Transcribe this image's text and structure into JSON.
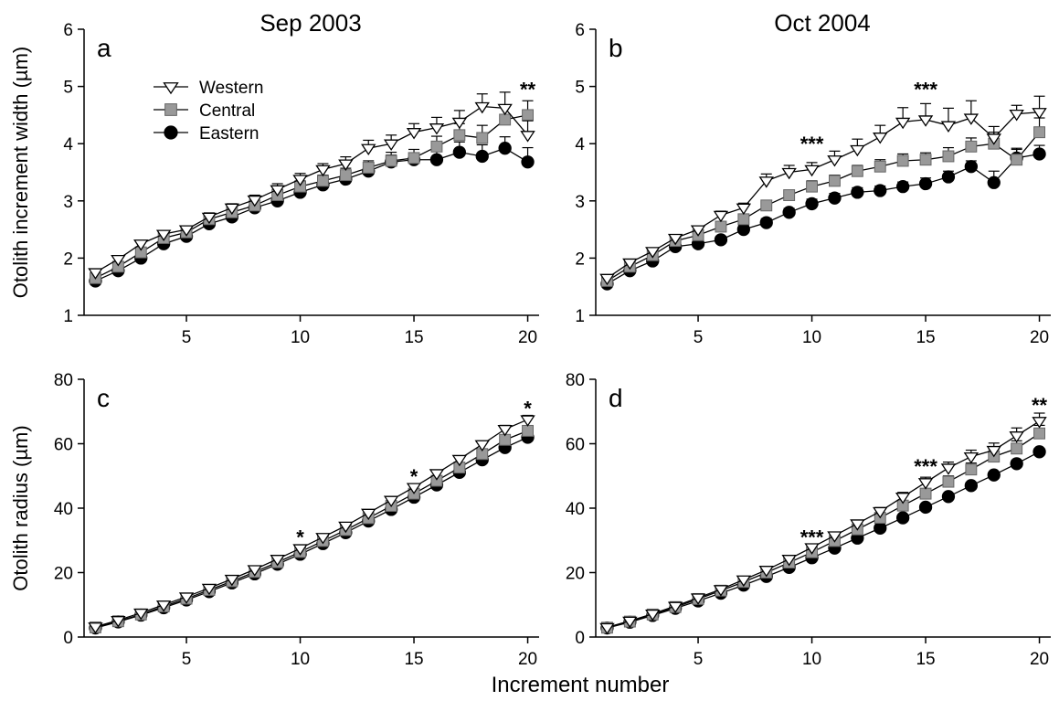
{
  "figure": {
    "column_titles": [
      "Sep 2003",
      "Oct 2004"
    ],
    "xlabel": "Increment number"
  },
  "legend": {
    "entries": [
      {
        "name": "Western",
        "marker": "triangle-down-open"
      },
      {
        "name": "Central",
        "marker": "square-gray"
      },
      {
        "name": "Eastern",
        "marker": "circle-black"
      }
    ],
    "placement": "top-left of panel a"
  },
  "colors": {
    "western_fill": "#ffffff",
    "central_fill": "#999999",
    "eastern_fill": "#000000",
    "line": "#000000"
  },
  "chart_data": [
    {
      "panel": "a",
      "type": "line",
      "ylabel": "Otolith increment width (µm)",
      "xlim": [
        0.5,
        20.5
      ],
      "ylim": [
        1,
        6
      ],
      "xticks": [
        5,
        10,
        15,
        20
      ],
      "yticks": [
        1,
        2,
        3,
        4,
        5,
        6
      ],
      "x": [
        1,
        2,
        3,
        4,
        5,
        6,
        7,
        8,
        9,
        10,
        11,
        12,
        13,
        14,
        15,
        16,
        17,
        18,
        19,
        20
      ],
      "series": [
        {
          "name": "Western",
          "values": [
            1.75,
            1.98,
            2.25,
            2.42,
            2.5,
            2.72,
            2.88,
            3.02,
            3.2,
            3.38,
            3.55,
            3.65,
            3.92,
            4.0,
            4.2,
            4.28,
            4.38,
            4.65,
            4.62,
            4.15
          ],
          "error": [
            0.05,
            0.05,
            0.06,
            0.06,
            0.06,
            0.07,
            0.07,
            0.08,
            0.1,
            0.1,
            0.1,
            0.12,
            0.14,
            0.15,
            0.15,
            0.18,
            0.2,
            0.22,
            0.28,
            0.25
          ]
        },
        {
          "name": "Central",
          "values": [
            1.65,
            1.85,
            2.1,
            2.35,
            2.45,
            2.68,
            2.8,
            2.92,
            3.1,
            3.25,
            3.35,
            3.45,
            3.58,
            3.7,
            3.75,
            3.95,
            4.15,
            4.1,
            4.42,
            4.5
          ],
          "error": [
            0.05,
            0.05,
            0.06,
            0.06,
            0.06,
            0.07,
            0.07,
            0.08,
            0.1,
            0.1,
            0.1,
            0.12,
            0.12,
            0.15,
            0.15,
            0.18,
            0.2,
            0.22,
            0.25,
            0.25
          ]
        },
        {
          "name": "Eastern",
          "values": [
            1.6,
            1.78,
            2.0,
            2.25,
            2.38,
            2.6,
            2.72,
            2.88,
            3.0,
            3.15,
            3.28,
            3.38,
            3.52,
            3.68,
            3.72,
            3.72,
            3.85,
            3.78,
            3.92,
            3.68
          ],
          "error": [
            0.05,
            0.05,
            0.06,
            0.06,
            0.06,
            0.07,
            0.07,
            0.08,
            0.1,
            0.12,
            0.12,
            0.1,
            0.12,
            0.12,
            0.12,
            0.15,
            0.18,
            0.2,
            0.2,
            0.25
          ]
        }
      ],
      "annotations": [
        {
          "x": 20,
          "y": 4.95,
          "text": "**"
        }
      ]
    },
    {
      "panel": "b",
      "type": "line",
      "ylabel": "",
      "xlim": [
        0.5,
        20.5
      ],
      "ylim": [
        1,
        6
      ],
      "xticks": [
        5,
        10,
        15,
        20
      ],
      "yticks": [
        1,
        2,
        3,
        4,
        5,
        6
      ],
      "x": [
        1,
        2,
        3,
        4,
        5,
        6,
        7,
        8,
        9,
        10,
        11,
        12,
        13,
        14,
        15,
        16,
        17,
        18,
        19,
        20
      ],
      "series": [
        {
          "name": "Western",
          "values": [
            1.65,
            1.92,
            2.12,
            2.35,
            2.5,
            2.75,
            2.88,
            3.35,
            3.5,
            3.55,
            3.72,
            3.9,
            4.12,
            4.38,
            4.42,
            4.32,
            4.45,
            4.1,
            4.52,
            4.55
          ],
          "error": [
            0.05,
            0.05,
            0.06,
            0.06,
            0.06,
            0.07,
            0.08,
            0.12,
            0.12,
            0.12,
            0.15,
            0.18,
            0.2,
            0.25,
            0.28,
            0.3,
            0.3,
            0.2,
            0.15,
            0.28
          ]
        },
        {
          "name": "Central",
          "values": [
            1.6,
            1.85,
            2.05,
            2.3,
            2.4,
            2.55,
            2.68,
            2.92,
            3.1,
            3.25,
            3.35,
            3.52,
            3.6,
            3.7,
            3.72,
            3.78,
            3.95,
            4.0,
            3.72,
            4.2
          ],
          "error": [
            0.05,
            0.05,
            0.06,
            0.06,
            0.06,
            0.07,
            0.08,
            0.08,
            0.08,
            0.1,
            0.1,
            0.1,
            0.12,
            0.12,
            0.12,
            0.15,
            0.15,
            0.2,
            0.2,
            0.25
          ]
        },
        {
          "name": "Eastern",
          "values": [
            1.55,
            1.78,
            1.95,
            2.2,
            2.25,
            2.32,
            2.5,
            2.62,
            2.8,
            2.95,
            3.05,
            3.15,
            3.18,
            3.25,
            3.3,
            3.42,
            3.6,
            3.32,
            3.75,
            3.82
          ],
          "error": [
            0.05,
            0.05,
            0.06,
            0.06,
            0.06,
            0.06,
            0.07,
            0.07,
            0.07,
            0.08,
            0.08,
            0.08,
            0.08,
            0.08,
            0.1,
            0.1,
            0.1,
            0.2,
            0.15,
            0.15
          ]
        }
      ],
      "annotations": [
        {
          "x": 10,
          "y": 4.0,
          "text": "***"
        },
        {
          "x": 15,
          "y": 4.95,
          "text": "***"
        }
      ]
    },
    {
      "panel": "c",
      "type": "line",
      "ylabel": "Otolith radius (µm)",
      "xlim": [
        0.5,
        20.5
      ],
      "ylim": [
        0,
        80
      ],
      "xticks": [
        5,
        10,
        15,
        20
      ],
      "yticks": [
        0,
        20,
        40,
        60,
        80
      ],
      "x": [
        1,
        2,
        3,
        4,
        5,
        6,
        7,
        8,
        9,
        10,
        11,
        12,
        13,
        14,
        15,
        16,
        17,
        18,
        19,
        20
      ],
      "series": [
        {
          "name": "Western",
          "values": [
            3.2,
            5.2,
            7.5,
            10.0,
            12.5,
            15.2,
            18.0,
            21.0,
            24.2,
            27.5,
            31.0,
            34.5,
            38.5,
            42.5,
            46.5,
            50.8,
            55.2,
            59.8,
            64.5,
            67.5
          ],
          "error": [
            0.2,
            0.2,
            0.3,
            0.3,
            0.4,
            0.4,
            0.5,
            0.5,
            0.6,
            0.6,
            0.7,
            0.7,
            0.8,
            0.8,
            0.9,
            1.0,
            1.0,
            1.1,
            1.2,
            1.3
          ]
        },
        {
          "name": "Central",
          "values": [
            3.0,
            4.9,
            7.0,
            9.5,
            11.9,
            14.6,
            17.3,
            20.2,
            23.2,
            26.4,
            29.8,
            33.2,
            36.9,
            40.7,
            44.5,
            48.5,
            52.6,
            56.8,
            61.2,
            64.0
          ],
          "error": [
            0.2,
            0.2,
            0.3,
            0.3,
            0.4,
            0.4,
            0.5,
            0.5,
            0.6,
            0.6,
            0.7,
            0.7,
            0.8,
            0.8,
            0.9,
            1.0,
            1.0,
            1.1,
            1.2,
            1.3
          ]
        },
        {
          "name": "Eastern",
          "values": [
            2.8,
            4.7,
            6.8,
            9.1,
            11.5,
            14.1,
            16.8,
            19.6,
            22.6,
            25.7,
            29.0,
            32.4,
            36.0,
            39.6,
            43.4,
            47.2,
            51.1,
            55.0,
            58.8,
            62.0
          ],
          "error": [
            0.2,
            0.2,
            0.3,
            0.3,
            0.4,
            0.4,
            0.5,
            0.5,
            0.6,
            0.6,
            0.7,
            0.7,
            0.8,
            0.8,
            0.9,
            1.0,
            1.0,
            1.1,
            1.2,
            1.3
          ]
        }
      ],
      "annotations": [
        {
          "x": 10,
          "y": 31,
          "text": "*"
        },
        {
          "x": 15,
          "y": 50,
          "text": "*"
        },
        {
          "x": 20,
          "y": 71,
          "text": "*"
        }
      ]
    },
    {
      "panel": "d",
      "type": "line",
      "ylabel": "",
      "xlim": [
        0.5,
        20.5
      ],
      "ylim": [
        0,
        80
      ],
      "xticks": [
        5,
        10,
        15,
        20
      ],
      "yticks": [
        0,
        20,
        40,
        60,
        80
      ],
      "x": [
        1,
        2,
        3,
        4,
        5,
        6,
        7,
        8,
        9,
        10,
        11,
        12,
        13,
        14,
        15,
        16,
        17,
        18,
        19,
        20
      ],
      "series": [
        {
          "name": "Western",
          "values": [
            3.0,
            5.0,
            7.2,
            9.6,
            12.2,
            14.8,
            17.8,
            20.8,
            24.2,
            27.8,
            31.5,
            35.2,
            39.0,
            43.5,
            48.0,
            52.5,
            56.0,
            58.0,
            62.5,
            67.0
          ],
          "error": [
            0.2,
            0.2,
            0.3,
            0.3,
            0.4,
            0.4,
            0.5,
            0.6,
            0.7,
            0.8,
            0.9,
            1.0,
            1.2,
            1.4,
            1.6,
            1.8,
            2.0,
            2.2,
            2.4,
            2.5
          ]
        },
        {
          "name": "Central",
          "values": [
            2.9,
            4.8,
            7.0,
            9.3,
            11.8,
            14.4,
            17.1,
            20.0,
            23.1,
            26.3,
            29.8,
            33.4,
            37.0,
            40.8,
            44.5,
            48.2,
            52.0,
            56.0,
            58.5,
            63.2
          ],
          "error": [
            0.2,
            0.2,
            0.3,
            0.3,
            0.4,
            0.4,
            0.5,
            0.6,
            0.7,
            0.8,
            0.9,
            1.0,
            1.2,
            1.4,
            1.6,
            1.8,
            2.0,
            2.2,
            2.4,
            2.5
          ]
        },
        {
          "name": "Eastern",
          "values": [
            2.8,
            4.6,
            6.7,
            8.9,
            11.2,
            13.6,
            16.1,
            18.8,
            21.6,
            24.6,
            27.6,
            30.7,
            33.8,
            37.0,
            40.3,
            43.6,
            47.0,
            50.3,
            53.8,
            57.5
          ],
          "error": [
            0.2,
            0.2,
            0.2,
            0.3,
            0.3,
            0.3,
            0.4,
            0.4,
            0.5,
            0.5,
            0.6,
            0.6,
            0.7,
            0.7,
            0.8,
            0.8,
            0.9,
            0.9,
            1.0,
            1.0
          ]
        }
      ],
      "annotations": [
        {
          "x": 10,
          "y": 31,
          "text": "***"
        },
        {
          "x": 15,
          "y": 53,
          "text": "***"
        },
        {
          "x": 20,
          "y": 72,
          "text": "**"
        }
      ]
    }
  ]
}
